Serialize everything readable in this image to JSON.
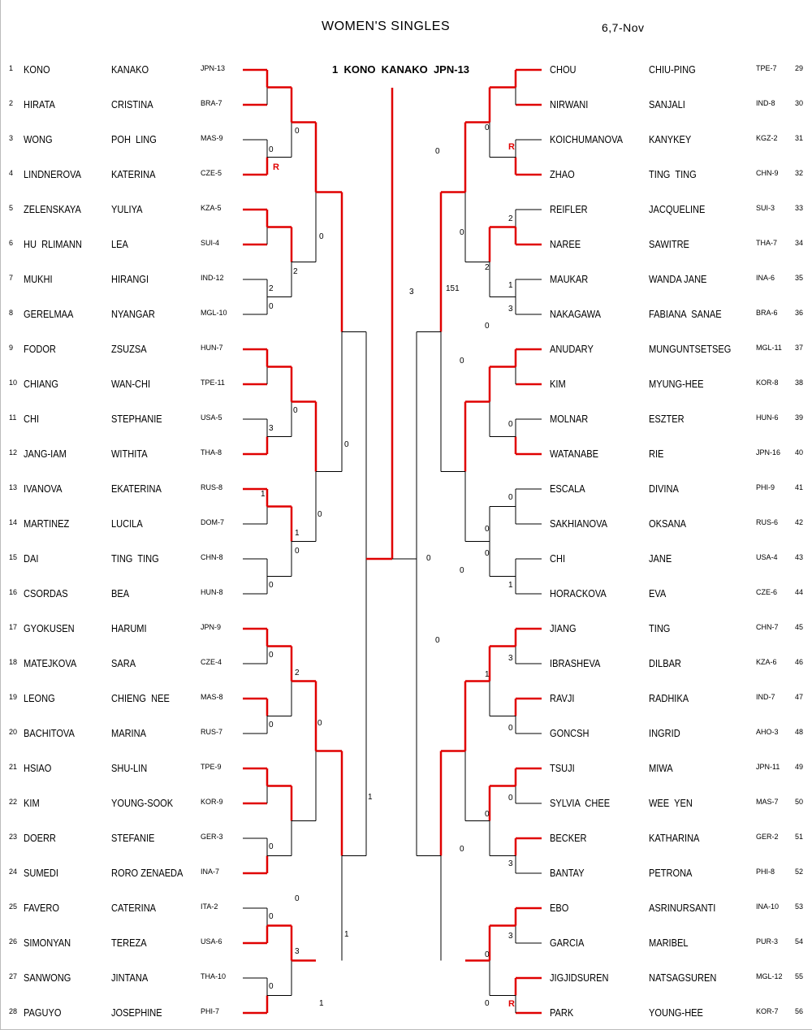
{
  "title": "WOMEN'S  SINGLES",
  "date": "6,7-Nov",
  "champion": "1  KONO  KANAKO  JPN-13",
  "left": [
    {
      "n": "1",
      "last": "KONO",
      "first": "KANAKO",
      "code": "JPN-13",
      "w": true
    },
    {
      "n": "2",
      "last": "HIRATA",
      "first": "CRISTINA",
      "code": "BRA-7",
      "w": true
    },
    {
      "n": "3",
      "last": "WONG",
      "first": "POH  LING",
      "code": "MAS-9",
      "w": false
    },
    {
      "n": "4",
      "last": "LINDNEROVA",
      "first": "KATERINA",
      "code": "CZE-5",
      "w": true
    },
    {
      "n": "5",
      "last": "ZELENSKAYA",
      "first": "YULIYA",
      "code": "KZA-5",
      "w": true
    },
    {
      "n": "6",
      "last": "HU  RLIMANN",
      "first": "LEA",
      "code": "SUI-4",
      "w": true
    },
    {
      "n": "7",
      "last": "MUKHI",
      "first": "HIRANGI",
      "code": "IND-12",
      "w": false
    },
    {
      "n": "8",
      "last": "GERELMAA",
      "first": "NYANGAR",
      "code": "MGL-10",
      "w": false
    },
    {
      "n": "9",
      "last": "FODOR",
      "first": "ZSUZSA",
      "code": "HUN-7",
      "w": true
    },
    {
      "n": "10",
      "last": "CHIANG",
      "first": "WAN-CHI",
      "code": "TPE-11",
      "w": true
    },
    {
      "n": "11",
      "last": "CHI",
      "first": "STEPHANIE",
      "code": "USA-5",
      "w": false
    },
    {
      "n": "12",
      "last": "JANG-IAM",
      "first": "WITHITA",
      "code": "THA-8",
      "w": true
    },
    {
      "n": "13",
      "last": "IVANOVA",
      "first": "EKATERINA",
      "code": "RUS-8",
      "w": true
    },
    {
      "n": "14",
      "last": "MARTINEZ",
      "first": "LUCILA",
      "code": "DOM-7",
      "w": false
    },
    {
      "n": "15",
      "last": "DAI",
      "first": "TING  TING",
      "code": "CHN-8",
      "w": false
    },
    {
      "n": "16",
      "last": "CSORDAS",
      "first": "BEA",
      "code": "HUN-8",
      "w": false
    },
    {
      "n": "17",
      "last": "GYOKUSEN",
      "first": "HARUMI",
      "code": "JPN-9",
      "w": true
    },
    {
      "n": "18",
      "last": "MATEJKOVA",
      "first": "SARA",
      "code": "CZE-4",
      "w": false
    },
    {
      "n": "19",
      "last": "LEONG",
      "first": "CHIENG  NEE",
      "code": "MAS-8",
      "w": true
    },
    {
      "n": "20",
      "last": "BACHITOVA",
      "first": "MARINA",
      "code": "RUS-7",
      "w": false
    },
    {
      "n": "21",
      "last": "HSIAO",
      "first": "SHU-LIN",
      "code": "TPE-9",
      "w": true
    },
    {
      "n": "22",
      "last": "KIM",
      "first": "YOUNG-SOOK",
      "code": "KOR-9",
      "w": true
    },
    {
      "n": "23",
      "last": "DOERR",
      "first": "STEFANIE",
      "code": "GER-3",
      "w": false
    },
    {
      "n": "24",
      "last": "SUMEDI",
      "first": "RORO ZENAEDA",
      "code": "INA-7",
      "w": true
    },
    {
      "n": "25",
      "last": "FAVERO",
      "first": "CATERINA",
      "code": "ITA-2",
      "w": false
    },
    {
      "n": "26",
      "last": "SIMONYAN",
      "first": "TEREZA",
      "code": "USA-6",
      "w": true
    },
    {
      "n": "27",
      "last": "SANWONG",
      "first": "JINTANA",
      "code": "THA-10",
      "w": false
    },
    {
      "n": "28",
      "last": "PAGUYO",
      "first": "JOSEPHINE",
      "code": "PHI-7",
      "w": true
    }
  ],
  "right": [
    {
      "n": "29",
      "last": "CHOU",
      "first": "CHIU-PING",
      "code": "TPE-7",
      "w": true
    },
    {
      "n": "30",
      "last": "NIRWANI",
      "first": "SANJALI",
      "code": "IND-8",
      "w": true
    },
    {
      "n": "31",
      "last": "KOICHUMANOVA",
      "first": "KANYKEY",
      "code": "KGZ-2",
      "w": false
    },
    {
      "n": "32",
      "last": "ZHAO",
      "first": "TING  TING",
      "code": "CHN-9",
      "w": true
    },
    {
      "n": "33",
      "last": "REIFLER",
      "first": "JACQUELINE",
      "code": "SUI-3",
      "w": false
    },
    {
      "n": "34",
      "last": "NAREE",
      "first": "SAWITRE",
      "code": "THA-7",
      "w": true
    },
    {
      "n": "35",
      "last": "MAUKAR",
      "first": "WANDA JANE",
      "code": "INA-6",
      "w": false
    },
    {
      "n": "36",
      "last": "NAKAGAWA",
      "first": "FABIANA  SANAE",
      "code": "BRA-6",
      "w": false
    },
    {
      "n": "37",
      "last": "ANUDARY",
      "first": "MUNGUNTSETSEG",
      "code": "MGL-11",
      "w": true
    },
    {
      "n": "38",
      "last": "KIM",
      "first": "MYUNG-HEE",
      "code": "KOR-8",
      "w": true
    },
    {
      "n": "39",
      "last": "MOLNAR",
      "first": "ESZTER",
      "code": "HUN-6",
      "w": false
    },
    {
      "n": "40",
      "last": "WATANABE",
      "first": "RIE",
      "code": "JPN-16",
      "w": true
    },
    {
      "n": "41",
      "last": "ESCALA",
      "first": "DIVINA",
      "code": "PHI-9",
      "w": false
    },
    {
      "n": "42",
      "last": "SAKHIANOVA",
      "first": "OKSANA",
      "code": "RUS-6",
      "w": false
    },
    {
      "n": "43",
      "last": "CHI",
      "first": "JANE",
      "code": "USA-4",
      "w": false
    },
    {
      "n": "44",
      "last": "HORACKOVA",
      "first": "EVA",
      "code": "CZE-6",
      "w": false
    },
    {
      "n": "45",
      "last": "JIANG",
      "first": "TING",
      "code": "CHN-7",
      "w": true
    },
    {
      "n": "46",
      "last": "IBRASHEVA",
      "first": "DILBAR",
      "code": "KZA-6",
      "w": false
    },
    {
      "n": "47",
      "last": "RAVJI",
      "first": "RADHIKA",
      "code": "IND-7",
      "w": true
    },
    {
      "n": "48",
      "last": "GONCSH",
      "first": "INGRID",
      "code": "AHO-3",
      "w": false
    },
    {
      "n": "49",
      "last": "TSUJI",
      "first": "MIWA",
      "code": "JPN-11",
      "w": true
    },
    {
      "n": "50",
      "last": "SYLVIA  CHEE",
      "first": "WEE  YEN",
      "code": "MAS-7",
      "w": false
    },
    {
      "n": "51",
      "last": "BECKER",
      "first": "KATHARINA",
      "code": "GER-2",
      "w": true
    },
    {
      "n": "52",
      "last": "BANTAY",
      "first": "PETRONA",
      "code": "PHI-8",
      "w": false
    },
    {
      "n": "53",
      "last": "EBO",
      "first": "ASRINURSANTI",
      "code": "INA-10",
      "w": true
    },
    {
      "n": "54",
      "last": "GARCIA",
      "first": "MARIBEL",
      "code": "PUR-3",
      "w": false
    },
    {
      "n": "55",
      "last": "JIGJIDSUREN",
      "first": "NATSAGSUREN",
      "code": "MGL-12",
      "w": true
    },
    {
      "n": "56",
      "last": "PARK",
      "first": "YOUNG-HEE",
      "code": "KOR-7",
      "w": true
    }
  ],
  "scores": [
    "0",
    "0",
    "R",
    "0",
    "2",
    "2",
    "0",
    "0",
    "3",
    "0",
    "1",
    "0",
    "1",
    "0",
    "0",
    "0",
    "2",
    "0",
    "0",
    "1",
    "0",
    "0",
    "0",
    "3",
    "0",
    "1",
    "1",
    "0",
    "0",
    "R",
    "0",
    "2",
    "0",
    "2",
    "1",
    "3",
    "151",
    "3",
    "0",
    "0",
    "0",
    "0",
    "0",
    "0",
    "1",
    "0",
    "0",
    "3",
    "1",
    "0",
    "0",
    "0",
    "3",
    "0",
    "0",
    "3",
    "R",
    "0"
  ]
}
